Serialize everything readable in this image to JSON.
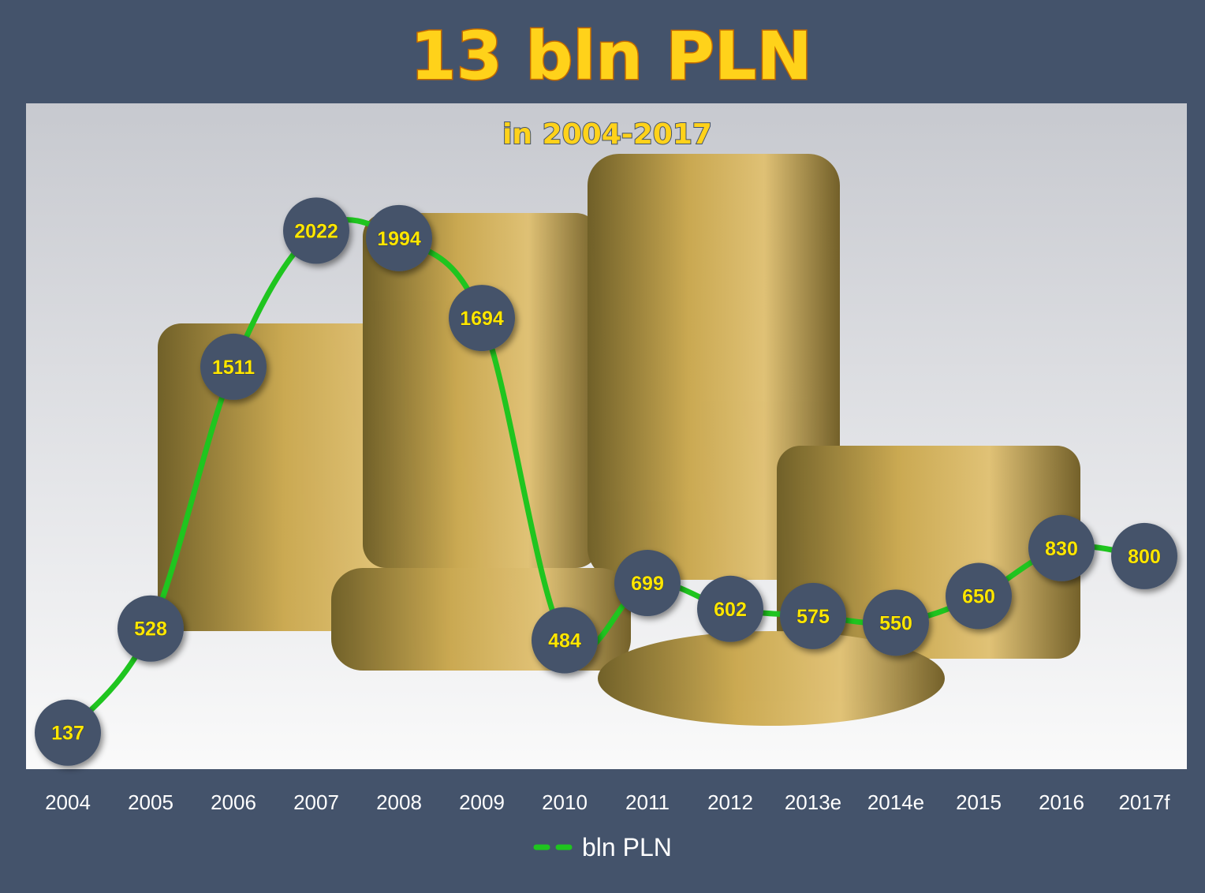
{
  "chart_data": {
    "type": "line",
    "title": "13 bln PLN",
    "subtitle": "in 2004-2017",
    "categories": [
      "2004",
      "2005",
      "2006",
      "2007",
      "2008",
      "2009",
      "2010",
      "2011",
      "2012",
      "2013e",
      "2014e",
      "2015",
      "2016",
      "2017f"
    ],
    "series": [
      {
        "name": "bln PLN",
        "color": "#1fc51f",
        "values": [
          137,
          528,
          1511,
          2022,
          1994,
          1694,
          484,
          699,
          602,
          575,
          550,
          650,
          830,
          800
        ]
      }
    ],
    "ylim": [
      0,
      2500
    ],
    "smooth": true,
    "legend": "bottom"
  }
}
